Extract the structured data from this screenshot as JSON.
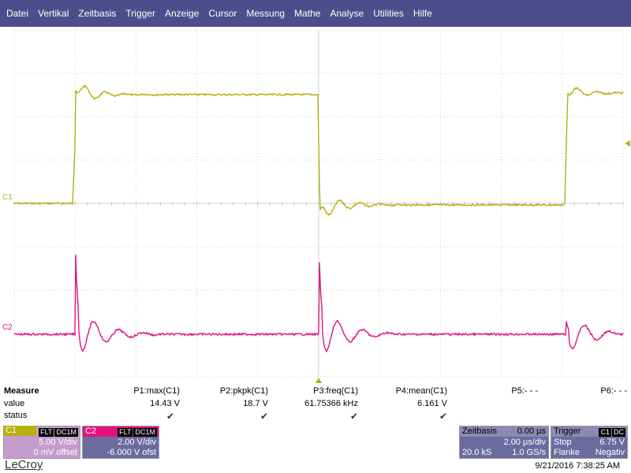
{
  "menu": [
    "Datei",
    "Vertikal",
    "Zeitbasis",
    "Trigger",
    "Anzeige",
    "Cursor",
    "Messung",
    "Mathe",
    "Analyse",
    "Utilities",
    "Hilfe"
  ],
  "channels": {
    "c1_label": "C1",
    "c2_label": "C2",
    "c1_color": "#b5b010",
    "c2_color": "#e0137c"
  },
  "measure": {
    "title": "Measure",
    "row_value": "value",
    "row_status": "status",
    "params": [
      {
        "name": "P1:max(C1)",
        "value": "14.43 V",
        "status": "✔"
      },
      {
        "name": "P2:pkpk(C1)",
        "value": "18.7 V",
        "status": "✔"
      },
      {
        "name": "P3:freq(C1)",
        "value": "61.75366 kHz",
        "status": "✔"
      },
      {
        "name": "P4:mean(C1)",
        "value": "6.161 V",
        "status": "✔"
      },
      {
        "name": "P5:- - -",
        "value": "",
        "status": ""
      },
      {
        "name": "P6:- - -",
        "value": "",
        "status": ""
      }
    ]
  },
  "c1_box": {
    "label": "C1",
    "tag1": "FLT",
    "tag2": "DC1M",
    "vdiv": "5.00 V/div",
    "offset": "0 mV offset"
  },
  "c2_box": {
    "label": "C2",
    "tag1": "FLT",
    "tag2": "DC1M",
    "vdiv": "2.00 V/div",
    "offset": "-6.000 V ofst"
  },
  "timebase": {
    "label": "Zeitbasis",
    "delay": "0.00 µs",
    "tdiv": "2.00 µs/div",
    "samples": "20.0 kS",
    "rate": "1.0 GS/s"
  },
  "trigger": {
    "label": "Trigger",
    "tag1": "C1",
    "tag2": "DC",
    "mode": "Stop",
    "level": "6.75 V",
    "edge_label": "Flanke",
    "edge": "Negativ"
  },
  "brand": "LeCroy",
  "timestamp": "9/21/2016 7:38:25 AM"
}
